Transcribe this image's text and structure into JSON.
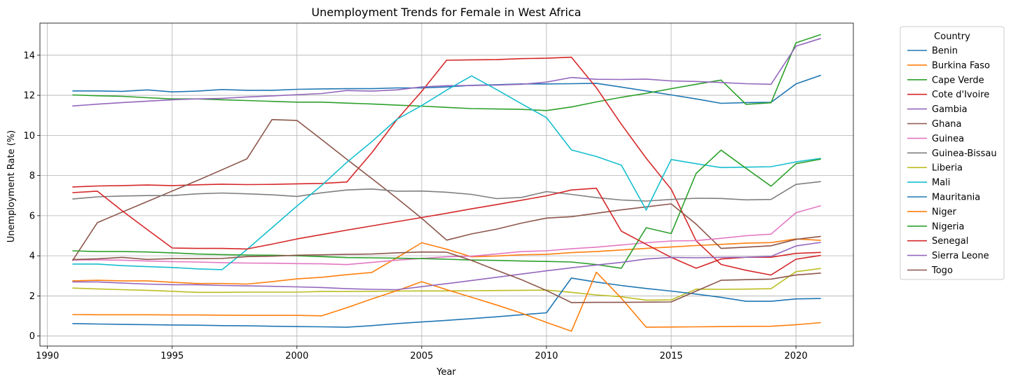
{
  "chart_data": {
    "type": "line",
    "title": "Unemployment Trends for Female in West Africa",
    "xlabel": "Year",
    "ylabel": "Unemployment Rate (%)",
    "xlim": [
      1989.7,
      2022.3
    ],
    "ylim": [
      -0.5,
      15.6
    ],
    "xticks": [
      1990,
      1995,
      2000,
      2005,
      2010,
      2015,
      2020
    ],
    "yticks": [
      0,
      2,
      4,
      6,
      8,
      10,
      12,
      14
    ],
    "grid": true,
    "legend_title": "Country",
    "legend_position": "outside-right",
    "x": [
      1991,
      1992,
      1993,
      1994,
      1995,
      1996,
      1997,
      1998,
      1999,
      2000,
      2001,
      2002,
      2003,
      2004,
      2005,
      2006,
      2007,
      2008,
      2009,
      2010,
      2011,
      2012,
      2013,
      2014,
      2015,
      2016,
      2017,
      2018,
      2019,
      2020,
      2021
    ],
    "series": [
      {
        "name": "Benin",
        "color": "#1f77b4",
        "values": [
          12.22,
          12.22,
          12.2,
          12.27,
          12.17,
          12.21,
          12.29,
          12.25,
          12.25,
          12.3,
          12.32,
          12.33,
          12.33,
          12.37,
          12.37,
          12.42,
          12.5,
          12.53,
          12.57,
          12.57,
          12.58,
          12.6,
          12.41,
          12.22,
          12.02,
          11.82,
          11.6,
          11.64,
          11.65,
          12.57,
          13.0
        ]
      },
      {
        "name": "Burkina Faso",
        "color": "#ff7f0e",
        "values": [
          2.75,
          2.78,
          2.75,
          2.75,
          2.68,
          2.62,
          2.62,
          2.59,
          2.71,
          2.85,
          2.93,
          3.06,
          3.17,
          3.9,
          4.65,
          4.33,
          3.95,
          3.99,
          4.05,
          4.07,
          4.16,
          4.21,
          4.29,
          4.37,
          4.44,
          4.51,
          4.57,
          4.63,
          4.66,
          4.84,
          4.77
        ]
      },
      {
        "name": "Cape Verde",
        "color": "#2ca02c",
        "values": [
          12.02,
          11.98,
          11.95,
          11.88,
          11.82,
          11.82,
          11.78,
          11.74,
          11.7,
          11.66,
          11.66,
          11.61,
          11.57,
          11.51,
          11.46,
          11.4,
          11.34,
          11.32,
          11.3,
          11.24,
          11.42,
          11.67,
          11.9,
          12.1,
          12.33,
          12.55,
          12.76,
          11.55,
          11.63,
          14.62,
          15.03
        ]
      },
      {
        "name": "Cote d'Ivoire",
        "color": "#d62728",
        "values": [
          7.43,
          7.48,
          7.5,
          7.53,
          7.5,
          7.54,
          7.57,
          7.55,
          7.56,
          7.59,
          7.61,
          7.68,
          9.14,
          10.78,
          12.2,
          13.75,
          13.77,
          13.78,
          13.83,
          13.85,
          13.9,
          12.38,
          10.56,
          8.86,
          7.32,
          4.75,
          3.57,
          3.28,
          3.04,
          3.83,
          4.02
        ]
      },
      {
        "name": "Gambia",
        "color": "#9467bd",
        "values": [
          11.47,
          11.56,
          11.64,
          11.71,
          11.78,
          11.82,
          11.85,
          11.92,
          11.97,
          12.03,
          12.09,
          12.24,
          12.21,
          12.27,
          12.42,
          12.48,
          12.49,
          12.51,
          12.55,
          12.66,
          12.89,
          12.8,
          12.79,
          12.81,
          12.72,
          12.69,
          12.64,
          12.58,
          12.55,
          14.45,
          14.84
        ]
      },
      {
        "name": "Ghana",
        "color": "#8c564b",
        "values": [
          3.75,
          5.65,
          6.18,
          6.7,
          7.23,
          7.75,
          8.29,
          8.84,
          10.79,
          10.75,
          9.79,
          8.81,
          7.85,
          6.88,
          5.87,
          4.78,
          5.09,
          5.33,
          5.63,
          5.88,
          5.95,
          6.12,
          6.29,
          6.44,
          6.59,
          5.58,
          4.37,
          4.43,
          4.5,
          4.82,
          4.97
        ]
      },
      {
        "name": "Guinea",
        "color": "#e377c2",
        "values": [
          3.79,
          3.8,
          3.78,
          3.74,
          3.71,
          3.69,
          3.66,
          3.64,
          3.63,
          3.61,
          3.6,
          3.56,
          3.67,
          3.78,
          3.87,
          3.95,
          3.98,
          4.09,
          4.21,
          4.25,
          4.35,
          4.43,
          4.54,
          4.65,
          4.74,
          4.76,
          4.87,
          5.0,
          5.08,
          6.15,
          6.5
        ]
      },
      {
        "name": "Guinea-Bissau",
        "color": "#7f7f7f",
        "values": [
          6.83,
          6.94,
          6.98,
          7.0,
          7.0,
          7.09,
          7.13,
          7.09,
          7.04,
          6.96,
          7.14,
          7.28,
          7.33,
          7.22,
          7.23,
          7.17,
          7.06,
          6.85,
          6.91,
          7.2,
          7.06,
          6.9,
          6.78,
          6.73,
          6.81,
          6.87,
          6.86,
          6.79,
          6.81,
          7.56,
          7.7
        ]
      },
      {
        "name": "Liberia",
        "color": "#bcbd22",
        "values": [
          2.39,
          2.35,
          2.31,
          2.28,
          2.23,
          2.18,
          2.18,
          2.19,
          2.19,
          2.19,
          2.22,
          2.22,
          2.23,
          2.24,
          2.25,
          2.25,
          2.26,
          2.27,
          2.28,
          2.29,
          2.18,
          2.05,
          1.96,
          1.79,
          1.8,
          2.34,
          2.33,
          2.34,
          2.36,
          3.21,
          3.37
        ]
      },
      {
        "name": "Mali",
        "color": "#17becf",
        "values": [
          3.59,
          3.59,
          3.51,
          3.46,
          3.42,
          3.35,
          3.31,
          4.32,
          5.4,
          6.48,
          7.52,
          8.66,
          9.69,
          10.8,
          11.49,
          12.26,
          12.97,
          12.29,
          11.58,
          10.89,
          9.28,
          8.95,
          8.52,
          6.28,
          8.8,
          8.59,
          8.4,
          8.42,
          8.44,
          8.68,
          8.86
        ]
      },
      {
        "name": "Mauritania",
        "color": "#1f77b4",
        "values": [
          0.62,
          0.6,
          0.58,
          0.57,
          0.55,
          0.54,
          0.52,
          0.51,
          0.49,
          0.47,
          0.46,
          0.44,
          0.52,
          0.62,
          0.7,
          0.78,
          0.87,
          0.96,
          1.06,
          1.16,
          2.89,
          2.69,
          2.52,
          2.37,
          2.24,
          2.09,
          1.93,
          1.73,
          1.73,
          1.85,
          1.87
        ]
      },
      {
        "name": "Niger",
        "color": "#ff7f0e",
        "values": [
          1.07,
          1.06,
          1.06,
          1.06,
          1.05,
          1.05,
          1.04,
          1.03,
          1.03,
          1.03,
          1.01,
          1.41,
          1.85,
          2.26,
          2.71,
          2.31,
          1.93,
          1.55,
          1.14,
          0.68,
          0.24,
          3.18,
          1.89,
          0.44,
          0.45,
          0.46,
          0.47,
          0.48,
          0.49,
          0.56,
          0.67
        ]
      },
      {
        "name": "Nigeria",
        "color": "#2ca02c",
        "values": [
          4.25,
          4.21,
          4.21,
          4.19,
          4.15,
          4.09,
          4.06,
          4.04,
          4.03,
          4.0,
          3.96,
          3.91,
          3.9,
          3.88,
          3.86,
          3.83,
          3.79,
          3.77,
          3.74,
          3.72,
          3.69,
          3.56,
          3.38,
          5.4,
          5.11,
          8.11,
          9.27,
          8.36,
          7.47,
          8.59,
          8.82
        ]
      },
      {
        "name": "Senegal",
        "color": "#d62728",
        "values": [
          7.15,
          7.22,
          6.24,
          5.31,
          4.39,
          4.37,
          4.37,
          4.34,
          4.58,
          4.84,
          5.06,
          5.28,
          5.49,
          5.7,
          5.91,
          6.12,
          6.34,
          6.55,
          6.77,
          6.99,
          7.28,
          7.37,
          5.23,
          4.57,
          3.92,
          3.38,
          3.84,
          3.93,
          3.93,
          4.12,
          4.17
        ]
      },
      {
        "name": "Sierra Leone",
        "color": "#9467bd",
        "values": [
          2.7,
          2.7,
          2.64,
          2.59,
          2.56,
          2.56,
          2.52,
          2.5,
          2.48,
          2.45,
          2.42,
          2.36,
          2.33,
          2.31,
          2.46,
          2.61,
          2.77,
          2.93,
          3.09,
          3.25,
          3.4,
          3.54,
          3.67,
          3.84,
          3.92,
          3.9,
          3.92,
          3.93,
          3.97,
          4.49,
          4.67
        ]
      },
      {
        "name": "Togo",
        "color": "#8c564b",
        "values": [
          3.81,
          3.85,
          3.92,
          3.82,
          3.86,
          3.86,
          3.87,
          3.96,
          3.98,
          4.03,
          4.05,
          4.07,
          4.09,
          4.15,
          4.19,
          4.18,
          3.77,
          3.28,
          2.81,
          2.27,
          1.67,
          1.68,
          1.68,
          1.69,
          1.7,
          2.24,
          2.78,
          2.81,
          2.84,
          3.04,
          3.14
        ]
      }
    ]
  }
}
